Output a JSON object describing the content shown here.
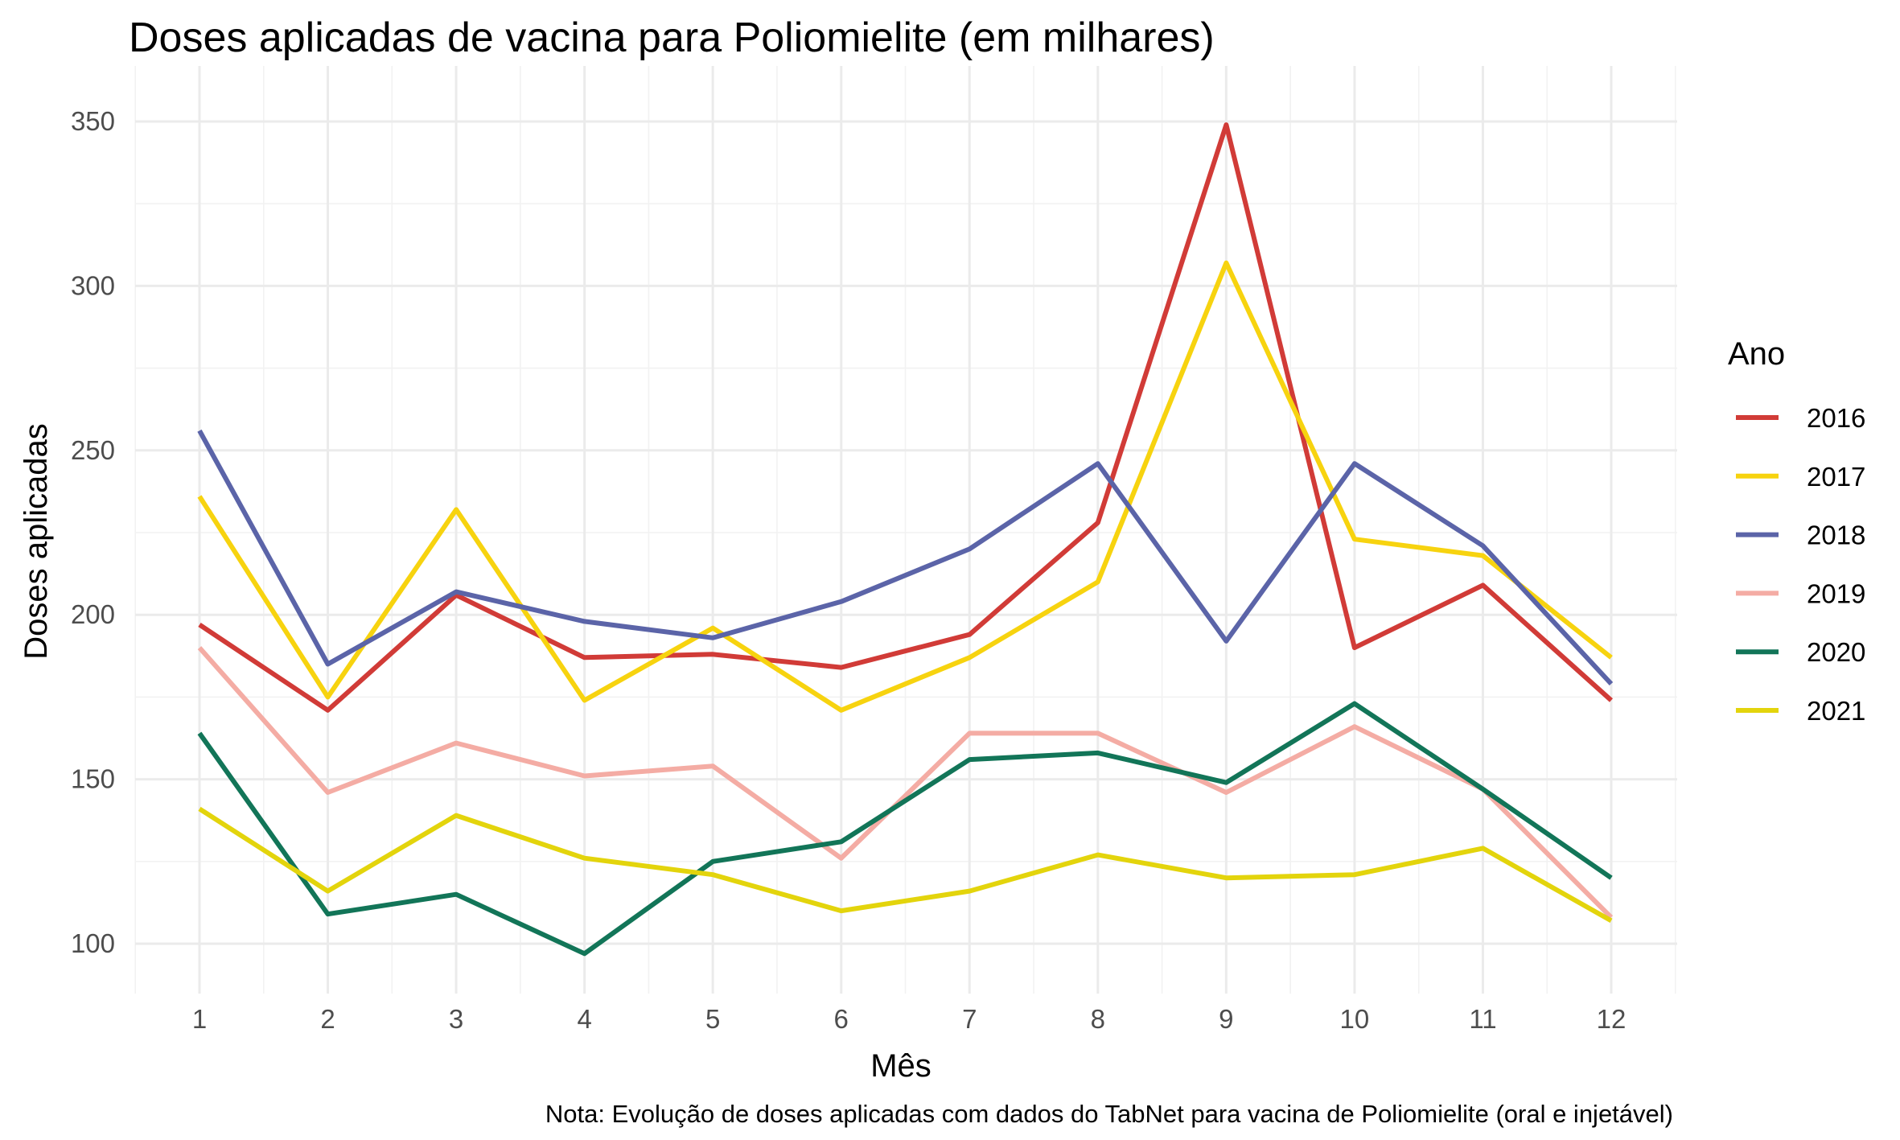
{
  "chart_data": {
    "type": "line",
    "title": "Doses aplicadas de vacina para Poliomielite (em milhares)",
    "xlabel": "Mês",
    "ylabel": "Doses aplicadas",
    "caption": "Nota: Evolução de doses aplicadas com dados do TabNet para vacina de Poliomielite (oral e injetável)",
    "legend_title": "Ano",
    "legend_position": "right",
    "grid": true,
    "x": [
      1,
      2,
      3,
      4,
      5,
      6,
      7,
      8,
      9,
      10,
      11,
      12
    ],
    "x_ticks": [
      "1",
      "2",
      "3",
      "4",
      "5",
      "6",
      "7",
      "8",
      "9",
      "10",
      "11",
      "12"
    ],
    "xlim": [
      0.5,
      12.5
    ],
    "y_ticks": [
      "100",
      "150",
      "200",
      "250",
      "300",
      "350"
    ],
    "ylim": [
      85,
      363
    ],
    "series": [
      {
        "name": "2016",
        "color": "#D13B37",
        "values": [
          197,
          171,
          206,
          187,
          188,
          184,
          194,
          228,
          349,
          190,
          209,
          174
        ]
      },
      {
        "name": "2017",
        "color": "#F7D30F",
        "values": [
          236,
          175,
          232,
          174,
          196,
          171,
          187,
          210,
          307,
          223,
          218,
          187
        ]
      },
      {
        "name": "2018",
        "color": "#5B64A8",
        "values": [
          256,
          185,
          207,
          198,
          193,
          204,
          220,
          246,
          192,
          246,
          221,
          179
        ]
      },
      {
        "name": "2019",
        "color": "#F4ACA4",
        "values": [
          190,
          146,
          161,
          151,
          154,
          126,
          164,
          164,
          146,
          166,
          147,
          108
        ]
      },
      {
        "name": "2020",
        "color": "#127558",
        "values": [
          164,
          109,
          115,
          97,
          125,
          131,
          156,
          158,
          149,
          173,
          147,
          120
        ]
      },
      {
        "name": "2021",
        "color": "#E3D40C",
        "values": [
          141,
          116,
          139,
          126,
          121,
          110,
          116,
          127,
          120,
          121,
          129,
          107
        ]
      }
    ]
  }
}
